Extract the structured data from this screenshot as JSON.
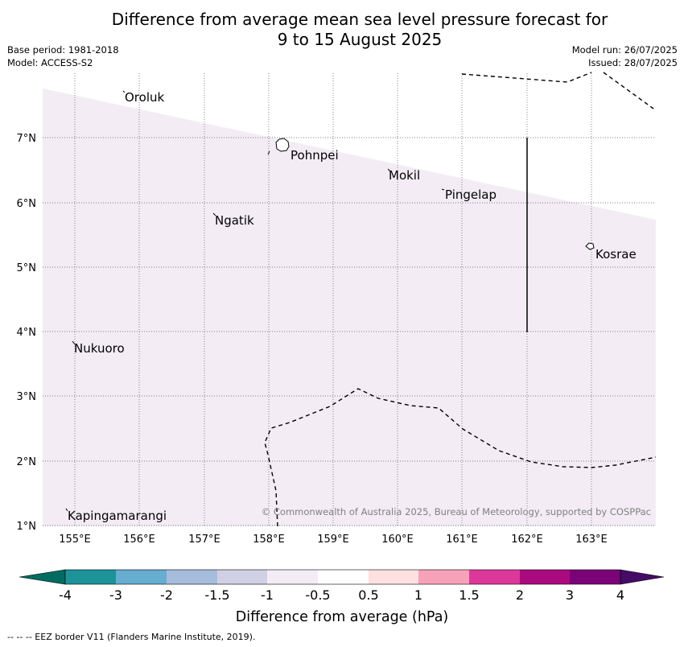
{
  "title": {
    "line1": "Difference from average mean sea level pressure forecast for",
    "line2": "9 to 15 August 2025"
  },
  "meta": {
    "base_period": "Base period: 1981-2018",
    "model": "Model: ACCESS-S2",
    "model_run": "Model run: 26/07/2025",
    "issued": "Issued: 28/07/2025"
  },
  "map": {
    "lon_ticks": [
      "155°E",
      "156°E",
      "157°E",
      "158°E",
      "159°E",
      "160°E",
      "161°E",
      "162°E",
      "163°E"
    ],
    "lat_ticks": [
      "7°N",
      "6°N",
      "5°N",
      "4°N",
      "3°N",
      "2°N",
      "1°N"
    ],
    "places": [
      "Oroluk",
      "Pohnpei",
      "Mokil",
      "Pingelap",
      "Ngatik",
      "Kosrae",
      "Nukuoro",
      "Kapingamarangi"
    ],
    "copyright": "© Commonwealth of Australia 2025, Bureau of Meteorology, supported by COSPPac",
    "shading_color": "#f3ecf5"
  },
  "colorbar": {
    "ticks": [
      "-4",
      "-3",
      "-2",
      "-1.5",
      "-1",
      "-0.5",
      "0.5",
      "1",
      "1.5",
      "2",
      "3",
      "4"
    ],
    "colors": [
      "#006b60",
      "#1c9299",
      "#66adcf",
      "#a5bcdc",
      "#d0d0e5",
      "#f3ecf5",
      "#ffffff",
      "#ffe0e0",
      "#f7a2b9",
      "#dc3899",
      "#ab0a7f",
      "#7a0477",
      "#460a67"
    ],
    "label": "Difference from average (hPa)"
  },
  "footer": "--  --  -- EEZ border V11 (Flanders Marine Institute, 2019)."
}
